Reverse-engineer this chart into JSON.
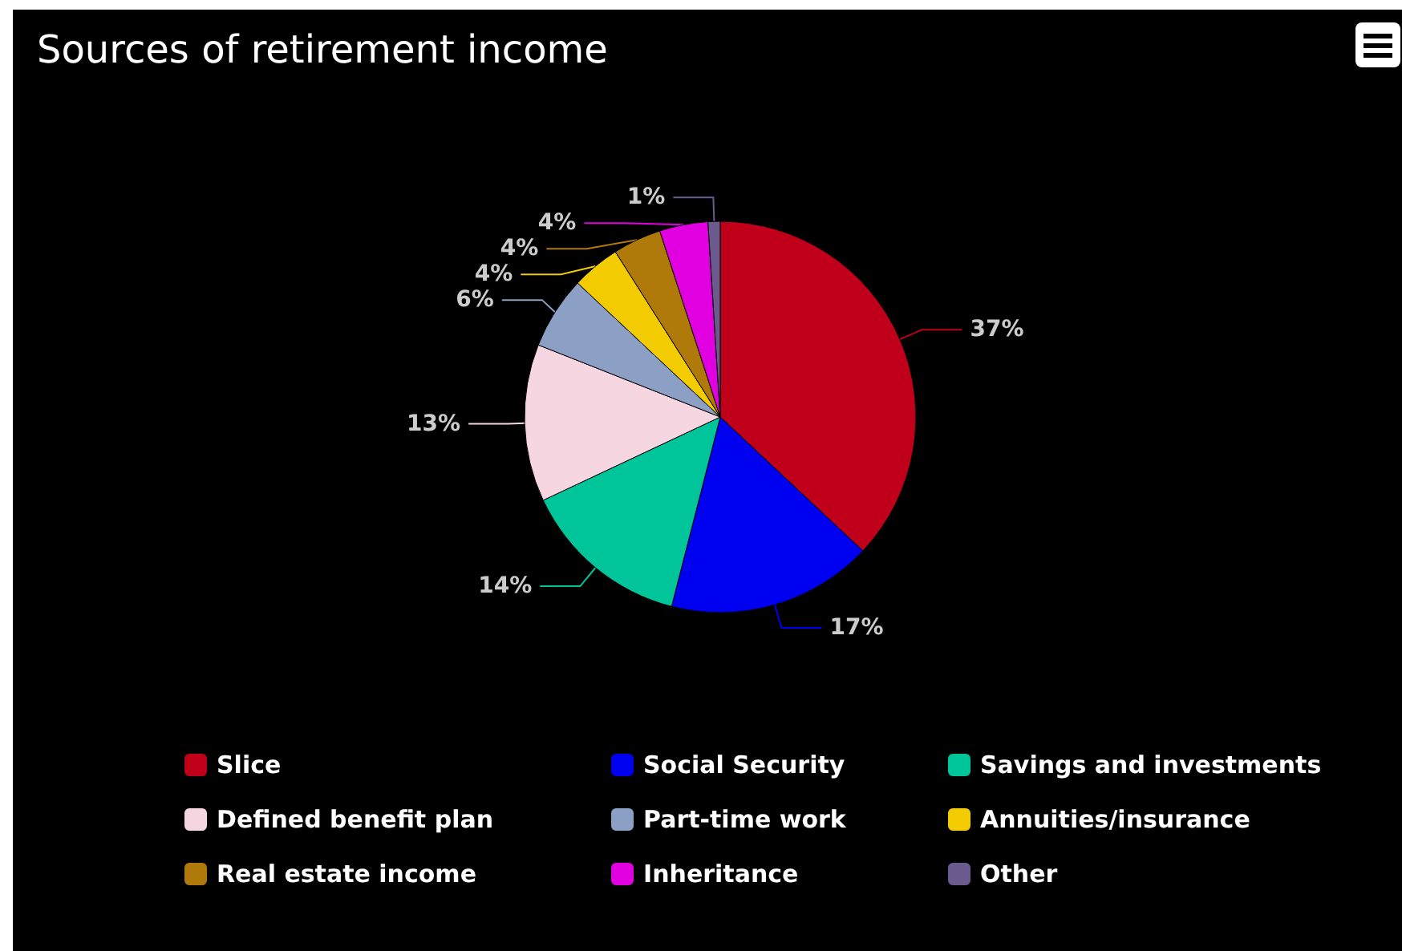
{
  "chart_data": {
    "type": "pie",
    "title": "Sources of retirement income",
    "categories": [
      "Slice",
      "Social Security",
      "Savings and investments",
      "Defined benefit plan",
      "Part-time work",
      "Annuities/insurance",
      "Real estate income",
      "Inheritance",
      "Other"
    ],
    "values": [
      37,
      17,
      14,
      13,
      6,
      4,
      4,
      4,
      1
    ],
    "colors": [
      "#c0001a",
      "#0000f0",
      "#00c49a",
      "#f6d6e0",
      "#8c9fc4",
      "#f2cc00",
      "#b07a0a",
      "#e000e0",
      "#6a5a8e"
    ],
    "value_labels": [
      "37%",
      "17%",
      "14%",
      "13%",
      "6%",
      "4%",
      "4%",
      "4%",
      "1%"
    ],
    "legend": "bottom"
  }
}
